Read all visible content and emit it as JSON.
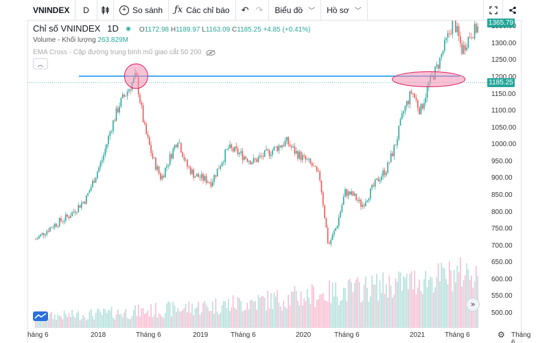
{
  "toolbar": {
    "symbol": "VNINDEX",
    "interval": "D",
    "compare_label": "So sánh",
    "indicators_label": "Các chỉ báo",
    "chart_type_label": "Biểu đồ",
    "profile_label": "Hồ sơ"
  },
  "legend": {
    "title": "Chỉ số VNINDEX",
    "interval": "1D",
    "open_label": "O",
    "open": "1172.98",
    "high_label": "H",
    "high": "1189.97",
    "low_label": "L",
    "low": "1163.09",
    "close_label": "C",
    "close": "1185.25",
    "change": "+4.85 (+0.41%)",
    "volume_label": "Volume - Khối lượng",
    "volume_value": "263.829M",
    "ema_label": "EMA Cross - Cặp đường trung bình mũ giao cắt 50 200"
  },
  "price_axis": {
    "ticks": [
      "1350.00",
      "1300.00",
      "1250.00",
      "1200.00",
      "1150.00",
      "1100.00",
      "1050.00",
      "1000.00",
      "950.00",
      "900.00",
      "850.00",
      "800.00",
      "750.00",
      "700.00",
      "650.00",
      "600.00",
      "550.00",
      "500.00"
    ],
    "current_price": "1185.25",
    "top_price": "1365.79"
  },
  "time_axis": {
    "labels": [
      "háng 6",
      "2018",
      "Tháng 6",
      "2019",
      "Tháng 6",
      "2020",
      "Tháng 6",
      "2021",
      "Tháng 6",
      "Tháng 6"
    ]
  },
  "colors": {
    "up": "#26a69a",
    "down": "#ef5350",
    "resistance_line": "#2196f3",
    "highlight_fill": "#f48fb1"
  },
  "chart_data": {
    "type": "candlestick",
    "title": "Chỉ số VNINDEX 1D",
    "ylim": [
      480,
      1380
    ],
    "resistance_level": 1204,
    "current_price_line": 1185.25,
    "close_series": [
      {
        "x": "2017-04",
        "y": 720
      },
      {
        "x": "2017-06",
        "y": 760
      },
      {
        "x": "2017-08",
        "y": 790
      },
      {
        "x": "2017-10",
        "y": 840
      },
      {
        "x": "2017-12",
        "y": 960
      },
      {
        "x": "2018-01",
        "y": 1050
      },
      {
        "x": "2018-02",
        "y": 1120
      },
      {
        "x": "2018-04",
        "y": 1204
      },
      {
        "x": "2018-05",
        "y": 1050
      },
      {
        "x": "2018-06",
        "y": 960
      },
      {
        "x": "2018-07",
        "y": 900
      },
      {
        "x": "2018-08",
        "y": 960
      },
      {
        "x": "2018-09",
        "y": 1020
      },
      {
        "x": "2018-10",
        "y": 940
      },
      {
        "x": "2018-11",
        "y": 910
      },
      {
        "x": "2018-12",
        "y": 900
      },
      {
        "x": "2019-01",
        "y": 890
      },
      {
        "x": "2019-03",
        "y": 990
      },
      {
        "x": "2019-04",
        "y": 980
      },
      {
        "x": "2019-06",
        "y": 950
      },
      {
        "x": "2019-08",
        "y": 980
      },
      {
        "x": "2019-10",
        "y": 1010
      },
      {
        "x": "2019-11",
        "y": 980
      },
      {
        "x": "2019-12",
        "y": 960
      },
      {
        "x": "2020-01",
        "y": 940
      },
      {
        "x": "2020-02",
        "y": 900
      },
      {
        "x": "2020-03",
        "y": 700
      },
      {
        "x": "2020-04",
        "y": 760
      },
      {
        "x": "2020-05",
        "y": 860
      },
      {
        "x": "2020-06",
        "y": 850
      },
      {
        "x": "2020-07",
        "y": 820
      },
      {
        "x": "2020-08",
        "y": 860
      },
      {
        "x": "2020-09",
        "y": 900
      },
      {
        "x": "2020-10",
        "y": 930
      },
      {
        "x": "2020-11",
        "y": 1000
      },
      {
        "x": "2020-12",
        "y": 1100
      },
      {
        "x": "2021-01",
        "y": 1160
      },
      {
        "x": "2021-02",
        "y": 1100
      },
      {
        "x": "2021-03",
        "y": 1180
      },
      {
        "x": "2021-04",
        "y": 1230
      },
      {
        "x": "2021-05",
        "y": 1300
      },
      {
        "x": "2021-06",
        "y": 1370
      },
      {
        "x": "2021-07",
        "y": 1280
      },
      {
        "x": "2021-08",
        "y": 1330
      },
      {
        "x": "2021-09",
        "y": 1350
      }
    ],
    "highlights": [
      {
        "label": "peak-2018",
        "x": "2018-04",
        "y": 1204
      },
      {
        "label": "breakout-2021",
        "x": "2021-03",
        "y": 1195
      }
    ]
  }
}
